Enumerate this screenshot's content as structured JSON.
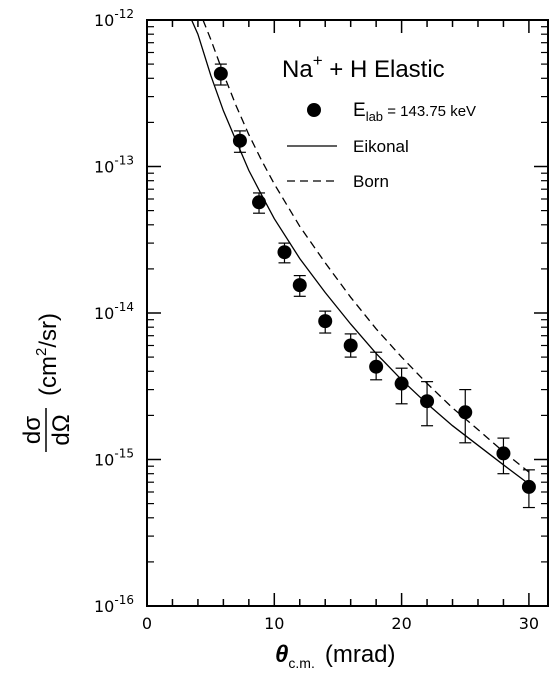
{
  "chart_data": {
    "type": "scatter",
    "title": {
      "main": "Na",
      "sup": "+",
      "rest": " + H Elastic"
    },
    "xlabel": {
      "symbol": "θ",
      "sub": "c.m.",
      "unit": "(mrad)"
    },
    "ylabel": {
      "numerator": "dσ",
      "denominator": "dΩ",
      "unit_prefix": "(cm",
      "unit_sup": "2",
      "unit_suffix": "/sr)"
    },
    "x_ticks": [
      "0",
      "10",
      "20",
      "30"
    ],
    "y_ticks": [
      {
        "base": "10",
        "exp": "-12"
      },
      {
        "base": "10",
        "exp": "-13"
      },
      {
        "base": "10",
        "exp": "-14"
      },
      {
        "base": "10",
        "exp": "-15"
      },
      {
        "base": "10",
        "exp": "-16"
      }
    ],
    "xlim": [
      0,
      31.5
    ],
    "ylim": [
      1e-16,
      1e-12
    ],
    "y_scale": "log",
    "grid": false,
    "legend_position": "top-right",
    "series": [
      {
        "name": {
          "main": "E",
          "sub": "lab",
          "rest": " = 143.75 keV"
        },
        "kind": "points",
        "points": [
          {
            "x": 5.8,
            "y": 4.3e-13,
            "err": [
              3.6e-13,
              5e-13
            ]
          },
          {
            "x": 7.3,
            "y": 1.5e-13,
            "err": [
              1.25e-13,
              1.75e-13
            ]
          },
          {
            "x": 8.8,
            "y": 5.7e-14,
            "err": [
              4.8e-14,
              6.6e-14
            ]
          },
          {
            "x": 10.8,
            "y": 2.6e-14,
            "err": [
              2.2e-14,
              3e-14
            ]
          },
          {
            "x": 12.0,
            "y": 1.55e-14,
            "err": [
              1.3e-14,
              1.8e-14
            ]
          },
          {
            "x": 14.0,
            "y": 8.8e-15,
            "err": [
              7.3e-15,
              1.03e-14
            ]
          },
          {
            "x": 16.0,
            "y": 6e-15,
            "err": [
              5e-15,
              7.2e-15
            ]
          },
          {
            "x": 18.0,
            "y": 4.3e-15,
            "err": [
              3.5e-15,
              5.4e-15
            ]
          },
          {
            "x": 20.0,
            "y": 3.3e-15,
            "err": [
              2.4e-15,
              4.2e-15
            ]
          },
          {
            "x": 22.0,
            "y": 2.5e-15,
            "err": [
              1.7e-15,
              3.4e-15
            ]
          },
          {
            "x": 25.0,
            "y": 2.1e-15,
            "err": [
              1.3e-15,
              3e-15
            ]
          },
          {
            "x": 28.0,
            "y": 1.1e-15,
            "err": [
              8e-16,
              1.4e-15
            ]
          },
          {
            "x": 30.0,
            "y": 6.5e-16,
            "err": [
              4.7e-16,
              8.5e-16
            ]
          }
        ]
      },
      {
        "name": "Eikonal",
        "kind": "line",
        "style": "solid",
        "points": [
          [
            3.5,
            1e-12
          ],
          [
            4,
            8e-13
          ],
          [
            5,
            4.2e-13
          ],
          [
            6,
            2.4e-13
          ],
          [
            7,
            1.5e-13
          ],
          [
            8,
            9.4e-14
          ],
          [
            9,
            6.4e-14
          ],
          [
            10,
            4.4e-14
          ],
          [
            12,
            2.35e-14
          ],
          [
            14,
            1.38e-14
          ],
          [
            16,
            8.4e-15
          ],
          [
            18,
            5.3e-15
          ],
          [
            20,
            3.5e-15
          ],
          [
            22,
            2.4e-15
          ],
          [
            24,
            1.7e-15
          ],
          [
            26,
            1.25e-15
          ],
          [
            28,
            9.2e-16
          ],
          [
            30,
            6.8e-16
          ]
        ]
      },
      {
        "name": "Born",
        "kind": "line",
        "style": "dashed",
        "points": [
          [
            4.4,
            1e-12
          ],
          [
            5,
            7.4e-13
          ],
          [
            6,
            4.3e-13
          ],
          [
            7,
            2.6e-13
          ],
          [
            8,
            1.65e-13
          ],
          [
            9,
            1.1e-13
          ],
          [
            10,
            7.6e-14
          ],
          [
            12,
            3.9e-14
          ],
          [
            14,
            2.2e-14
          ],
          [
            16,
            1.28e-14
          ],
          [
            18,
            7.8e-15
          ],
          [
            20,
            5e-15
          ],
          [
            22,
            3.3e-15
          ],
          [
            24,
            2.25e-15
          ],
          [
            26,
            1.6e-15
          ],
          [
            28,
            1.13e-15
          ],
          [
            30,
            8.2e-16
          ]
        ]
      }
    ]
  }
}
